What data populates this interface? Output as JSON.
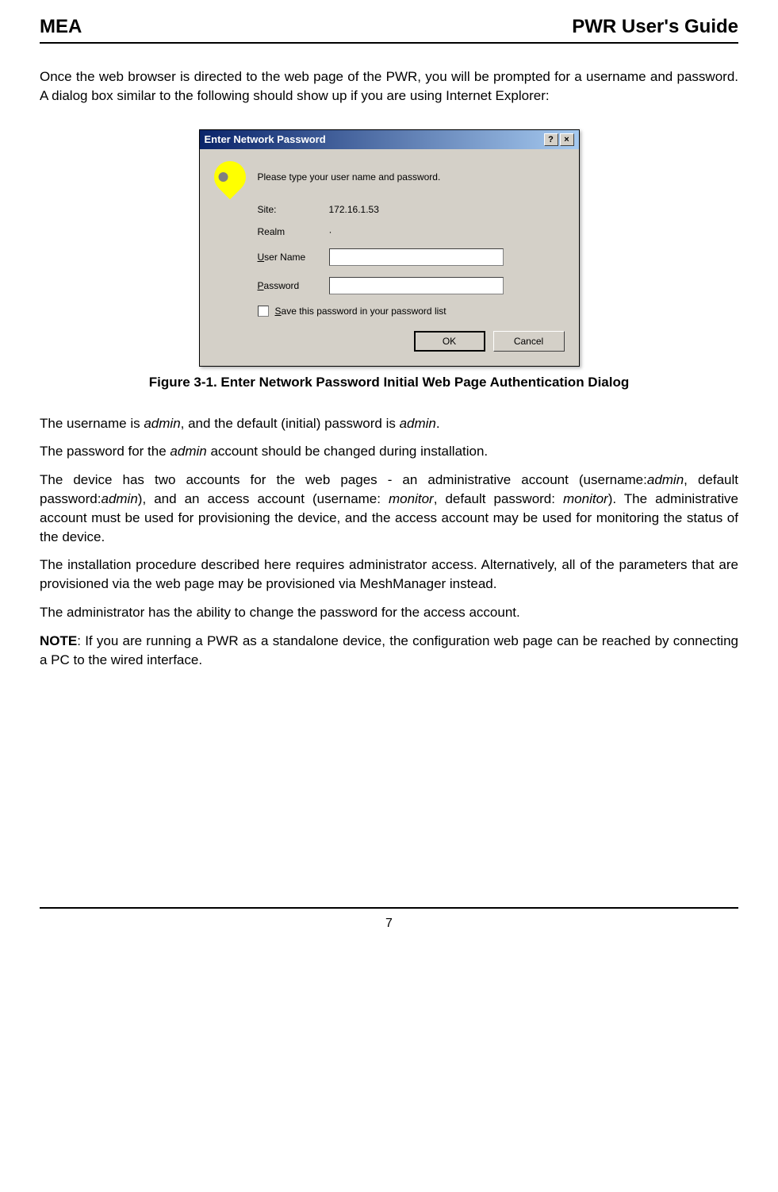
{
  "header": {
    "left": "MEA",
    "right": "PWR User's Guide"
  },
  "intro": "Once the web browser is directed to the web page of the PWR, you will be prompted for a username and password. A dialog box similar to the following should show up if you are using Internet Explorer:",
  "dialog": {
    "title": "Enter Network Password",
    "help_btn": "?",
    "close_btn": "×",
    "prompt": "Please type your user name and password.",
    "site_label": "Site:",
    "site_value": "172.16.1.53",
    "realm_label": "Realm",
    "realm_value": "·",
    "username_label": "User Name",
    "password_label": "Password",
    "checkbox_label": "Save this password in your password list",
    "ok_button": "OK",
    "cancel_button": "Cancel"
  },
  "figure_caption": "Figure 3-1.     Enter Network Password Initial Web Page Authentication Dialog",
  "paragraphs": {
    "p1_pre": "The username is ",
    "p1_italic1": "admin",
    "p1_mid": ", and the default (initial) password is ",
    "p1_italic2": "admin",
    "p1_end": ".",
    "p2_pre": "The password for the ",
    "p2_italic": "admin",
    "p2_end": " account should be changed during installation.",
    "p3_pre": "The device has two accounts for the web pages - an administrative account (username:",
    "p3_italic1": "admin",
    "p3_mid1": ", default password:",
    "p3_italic2": "admin",
    "p3_mid2": "), and an access account (username: ",
    "p3_italic3": "monitor",
    "p3_mid3": ", default password: ",
    "p3_italic4": "monitor",
    "p3_end": "). The administrative account must be used for provisioning the device, and the access account may be used for monitoring the status of the device.",
    "p4": "The installation procedure described here requires administrator access. Alternatively, all of the parameters that are provisioned via the web page may be provisioned via MeshManager instead.",
    "p5": "The administrator has the ability to change the password for the access account.",
    "p6_label": "NOTE",
    "p6_text": ": If you are running a PWR as a standalone device, the configuration web page can be reached by connecting a PC to the wired interface."
  },
  "footer": {
    "page_number": "7"
  }
}
